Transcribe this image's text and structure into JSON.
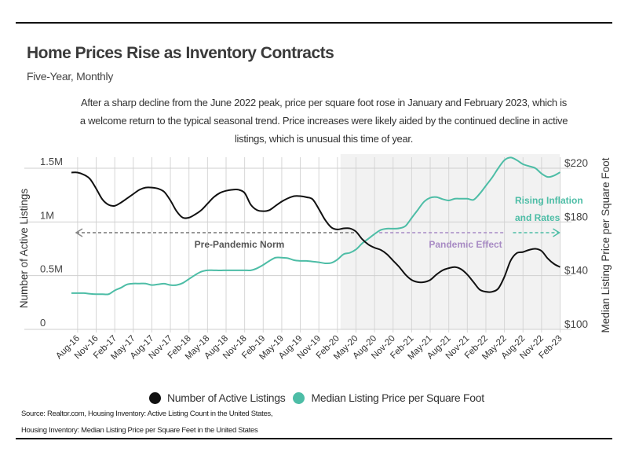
{
  "header": {
    "title": "Home Prices Rise as Inventory Contracts",
    "subtitle": "Five-Year, Monthly",
    "description": "After a sharp decline from the June 2022 peak, price per square foot rose in January and February 2023, which is a welcome return to the typical seasonal trend. Price increases were likely aided by the continued decline in active listings, which is unusual this time of year."
  },
  "chart_data": {
    "type": "line",
    "title": "Home Prices Rise as Inventory Contracts",
    "subtitle": "Five-Year, Monthly",
    "x_start": "Jul-16",
    "x_end": "Feb-23",
    "x_frequency": "monthly",
    "x_tick_labels": [
      "Aug-16",
      "Nov-16",
      "Feb-17",
      "May-17",
      "Aug-17",
      "Nov-17",
      "Feb-18",
      "May-18",
      "Aug-18",
      "Nov-18",
      "Feb-19",
      "May-19",
      "Aug-19",
      "Nov-19",
      "Feb-20",
      "May-20",
      "Aug-20",
      "Nov-20",
      "Feb-21",
      "May-21",
      "Aug-21",
      "Nov-21",
      "Feb-22",
      "May-22",
      "Aug-22",
      "Nov-22",
      "Feb-23"
    ],
    "ylabel_left": "Number of Active Listings",
    "ylabel_right": "Median Listing Price per Square Foot",
    "ylim_left": [
      0,
      1500000
    ],
    "yticks_left": [
      "0",
      "0.5M",
      "1M",
      "1.5M"
    ],
    "ylim_right": [
      100,
      220
    ],
    "yticks_right": [
      "$100",
      "$140",
      "$180",
      "$220"
    ],
    "grid": true,
    "legend_position": "bottom",
    "series": [
      {
        "name": "Number of Active Listings",
        "axis": "left",
        "color": "#111111",
        "unit": "millions",
        "values": [
          1.46,
          1.46,
          1.44,
          1.4,
          1.31,
          1.21,
          1.16,
          1.15,
          1.18,
          1.22,
          1.26,
          1.3,
          1.32,
          1.32,
          1.31,
          1.28,
          1.2,
          1.1,
          1.04,
          1.04,
          1.07,
          1.11,
          1.17,
          1.23,
          1.27,
          1.29,
          1.3,
          1.3,
          1.27,
          1.16,
          1.11,
          1.1,
          1.11,
          1.15,
          1.19,
          1.22,
          1.24,
          1.24,
          1.23,
          1.21,
          1.12,
          1.02,
          0.95,
          0.93,
          0.94,
          0.94,
          0.91,
          0.84,
          0.79,
          0.76,
          0.74,
          0.7,
          0.64,
          0.58,
          0.51,
          0.46,
          0.44,
          0.44,
          0.46,
          0.51,
          0.55,
          0.57,
          0.58,
          0.56,
          0.51,
          0.44,
          0.37,
          0.35,
          0.35,
          0.38,
          0.49,
          0.64,
          0.71,
          0.72,
          0.74,
          0.75,
          0.73,
          0.66,
          0.61,
          0.58
        ]
      },
      {
        "name": "Median Listing Price per Square Foot",
        "axis": "right",
        "color": "#4dbda6",
        "unit": "USD",
        "values": [
          127,
          127,
          127,
          126.5,
          126.2,
          126.2,
          126.2,
          129,
          131,
          133.5,
          134.1,
          134.1,
          134.1,
          133,
          133.5,
          134,
          133,
          133,
          134.5,
          137.5,
          140.5,
          143,
          144,
          144,
          143.9,
          144,
          144,
          144,
          144,
          144,
          145.5,
          148,
          151,
          153.4,
          153.4,
          153,
          151.5,
          151,
          151,
          150.5,
          150,
          149.2,
          149.5,
          152,
          156,
          157,
          159.5,
          164,
          167.5,
          171,
          174,
          175,
          175,
          175.3,
          177,
          183,
          189,
          195,
          198,
          198.5,
          197,
          196,
          197.3,
          197.3,
          197.3,
          196.5,
          201,
          207,
          213,
          220,
          226,
          228,
          226,
          223,
          221.5,
          220,
          216,
          213.5,
          214.5,
          217
        ]
      }
    ],
    "shaded_region": {
      "start": "Mar-20",
      "end": "Feb-23",
      "color": "#f2f2f2"
    },
    "annotations": [
      {
        "text": "Pre-Pandemic Norm",
        "color": "#555555",
        "arrow": "left",
        "level_left_axis": 0.9,
        "from": "Jul-16",
        "to": "May-20"
      },
      {
        "text": "Pandemic Effect",
        "color": "#a88bc4",
        "level_left_axis": 0.9,
        "from": "Aug-20",
        "to": "Apr-22"
      },
      {
        "text": "Rising Inflation",
        "text2": "and Rates",
        "color": "#4dbda6",
        "arrow": "right",
        "level_left_axis": 0.9,
        "from": "Jun-22",
        "to": "Feb-23"
      }
    ]
  },
  "legend": {
    "items": [
      {
        "label": "Number of Active Listings",
        "color": "#111111"
      },
      {
        "label": "Median Listing Price per Square Foot",
        "color": "#4dbda6"
      }
    ]
  },
  "footer": {
    "source_line1": "Source:  Realtor.com, Housing Inventory: Active Listing Count in the United States,",
    "source_line2": "Housing Inventory: Median Listing Price per Square Feet in the United States"
  }
}
